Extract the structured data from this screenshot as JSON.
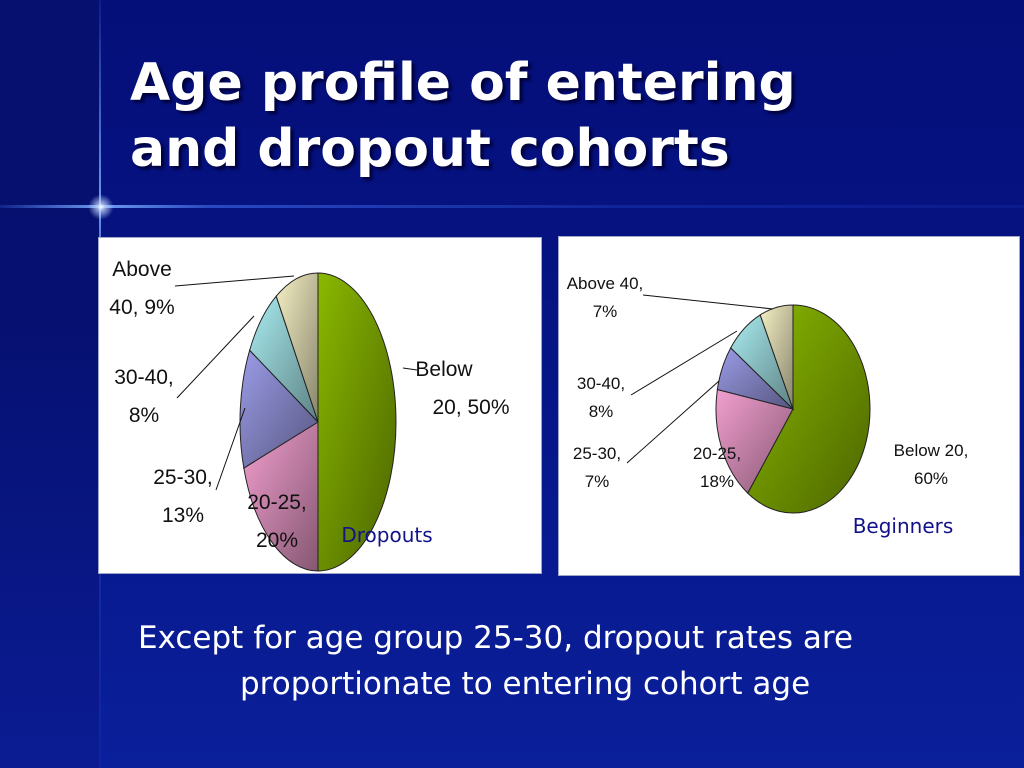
{
  "slide": {
    "title_line1": "Age profile of entering",
    "title_line2": "and dropout cohorts",
    "body_line1": "Except for age group 25-30, dropout rates are",
    "body_line2": "proportionate to entering cohort age"
  },
  "colors": {
    "background": "#061283",
    "title": "#ffffff",
    "caption": "#12128a"
  },
  "chart_data": [
    {
      "type": "pie",
      "caption": "Dropouts",
      "slices": [
        {
          "label_a": "Below",
          "label_b": "20, 50%",
          "category": "Below 20",
          "value": 50,
          "color": "#8ab800"
        },
        {
          "label_a": "20-25,",
          "label_b": "20%",
          "category": "20-25",
          "value": 20,
          "color": "#f29fcf"
        },
        {
          "label_a": "25-30,",
          "label_b": "13%",
          "category": "25-30",
          "value": 13,
          "color": "#9c9ce8"
        },
        {
          "label_a": "30-40,",
          "label_b": "8%",
          "category": "30-40",
          "value": 8,
          "color": "#a9ecf0"
        },
        {
          "label_a": "Above",
          "label_b": "40, 9%",
          "category": "Above 40",
          "value": 9,
          "color": "#f5f0c4"
        }
      ]
    },
    {
      "type": "pie",
      "caption": "Beginners",
      "slices": [
        {
          "label_a": "Below 20,",
          "label_b": "60%",
          "category": "Below 20",
          "value": 60,
          "color": "#8ab800"
        },
        {
          "label_a": "20-25,",
          "label_b": "18%",
          "category": "20-25",
          "value": 18,
          "color": "#f29fcf"
        },
        {
          "label_a": "25-30,",
          "label_b": "7%",
          "category": "25-30",
          "value": 7,
          "color": "#9c9ce8"
        },
        {
          "label_a": "30-40,",
          "label_b": "8%",
          "category": "30-40",
          "value": 8,
          "color": "#a9ecf0"
        },
        {
          "label_a": "Above 40,",
          "label_b": "7%",
          "category": "Above 40",
          "value": 7,
          "color": "#f5f0c4"
        }
      ]
    }
  ]
}
